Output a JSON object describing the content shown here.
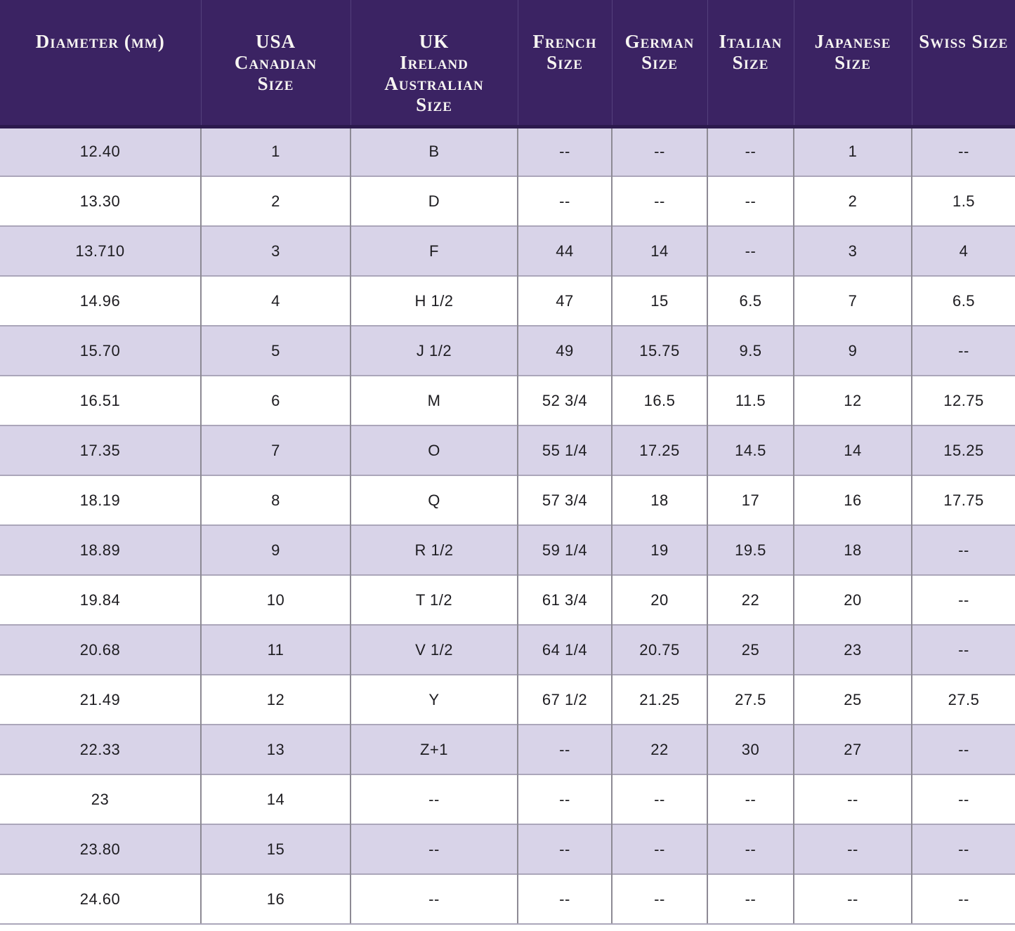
{
  "colors": {
    "header_bg": "#3b2363",
    "header_text": "#f7f5f2",
    "header_border": "#2c1a4d",
    "header_divider": "#54407c",
    "row_stripe": "#d8d3e8",
    "row_white": "#ffffff",
    "grid_vertical": "#8d8a94",
    "grid_horizontal": "#aba6ba",
    "body_text": "#1d1c20"
  },
  "table": {
    "headers": [
      {
        "id": "diameter-mm",
        "lines": [
          "Diameter (mm)"
        ]
      },
      {
        "id": "usa-canadian-size",
        "lines": [
          "USA",
          "Canadian",
          "Size"
        ]
      },
      {
        "id": "uk-ireland-australian-size",
        "lines": [
          "UK",
          "Ireland",
          "Australian",
          "Size"
        ]
      },
      {
        "id": "french-size",
        "lines": [
          "French",
          "Size"
        ]
      },
      {
        "id": "german-size",
        "lines": [
          "German",
          "Size"
        ]
      },
      {
        "id": "italian-size",
        "lines": [
          "Italian",
          "Size"
        ]
      },
      {
        "id": "japanese-size",
        "lines": [
          "Japanese Size"
        ]
      },
      {
        "id": "swiss-size",
        "lines": [
          "Swiss Size"
        ]
      }
    ]
  },
  "chart_data": {
    "type": "table",
    "columns": [
      "Diameter (mm)",
      "USA Canadian Size",
      "UK Ireland Australian Size",
      "French Size",
      "German Size",
      "Italian Size",
      "Japanese Size",
      "Swiss Size"
    ],
    "rows": [
      [
        "12.40",
        "1",
        "B",
        "--",
        "--",
        "--",
        "1",
        "--"
      ],
      [
        "13.30",
        "2",
        "D",
        "--",
        "--",
        "--",
        "2",
        "1.5"
      ],
      [
        "13.710",
        "3",
        "F",
        "44",
        "14",
        "--",
        "3",
        "4"
      ],
      [
        "14.96",
        "4",
        "H 1/2",
        "47",
        "15",
        "6.5",
        "7",
        "6.5"
      ],
      [
        "15.70",
        "5",
        "J 1/2",
        "49",
        "15.75",
        "9.5",
        "9",
        "--"
      ],
      [
        "16.51",
        "6",
        "M",
        "52 3/4",
        "16.5",
        "11.5",
        "12",
        "12.75"
      ],
      [
        "17.35",
        "7",
        "O",
        "55 1/4",
        "17.25",
        "14.5",
        "14",
        "15.25"
      ],
      [
        "18.19",
        "8",
        "Q",
        "57 3/4",
        "18",
        "17",
        "16",
        "17.75"
      ],
      [
        "18.89",
        "9",
        "R 1/2",
        "59 1/4",
        "19",
        "19.5",
        "18",
        "--"
      ],
      [
        "19.84",
        "10",
        "T 1/2",
        "61 3/4",
        "20",
        "22",
        "20",
        "--"
      ],
      [
        "20.68",
        "11",
        "V 1/2",
        "64 1/4",
        "20.75",
        "25",
        "23",
        "--"
      ],
      [
        "21.49",
        "12",
        "Y",
        "67 1/2",
        "21.25",
        "27.5",
        "25",
        "27.5"
      ],
      [
        "22.33",
        "13",
        "Z+1",
        "--",
        "22",
        "30",
        "27",
        "--"
      ],
      [
        "23",
        "14",
        "--",
        "--",
        "--",
        "--",
        "--",
        "--"
      ],
      [
        "23.80",
        "15",
        "--",
        "--",
        "--",
        "--",
        "--",
        "--"
      ],
      [
        "24.60",
        "16",
        "--",
        "--",
        "--",
        "--",
        "--",
        "--"
      ]
    ]
  }
}
